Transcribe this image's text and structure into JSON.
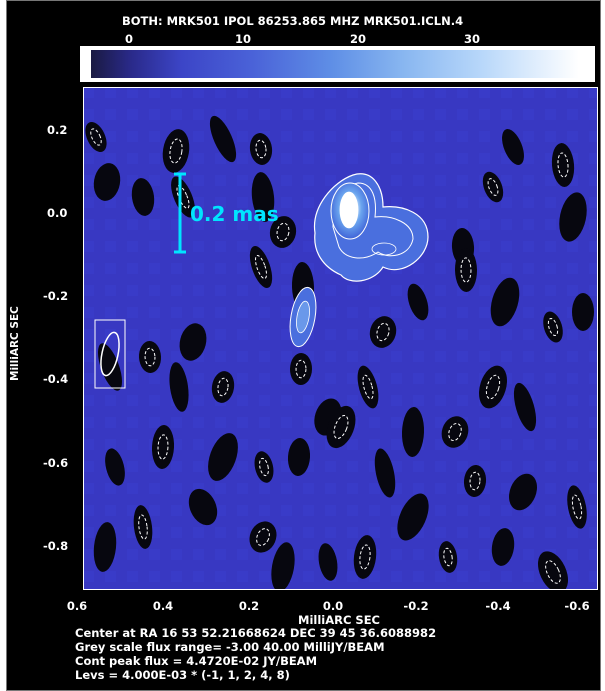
{
  "title": "BOTH: MRK501  IPOL  86253.865 MHZ  MRK501.ICLN.4",
  "colorbar": {
    "ticks": [
      "0",
      "10",
      "20",
      "30"
    ],
    "min": -3.0,
    "max": 40.0
  },
  "plot": {
    "xlabel": "MilliARC SEC",
    "ylabel": "MilliARC SEC",
    "x_ticks": [
      "0.6",
      "0.4",
      "0.2",
      "0.0",
      "-0.2",
      "-0.4",
      "-0.6"
    ],
    "y_ticks": [
      "0.2",
      "0.0",
      "-0.2",
      "-0.4",
      "-0.6",
      "-0.8"
    ],
    "scale_bar_label": "0.2 mas",
    "colors": {
      "background": "#3a3ac8",
      "dark": "#050510",
      "core": "#ffffff",
      "contour": "#ffffff",
      "scalebar": "#00e5ff"
    }
  },
  "info": {
    "center": "Center at RA 16 53 52.21668624  DEC 39 45 36.6088982",
    "grey_range": "Grey scale flux range= -3.00 40.00 MilliJY/BEAM",
    "peak": "Cont peak flux =  4.4720E-02 JY/BEAM",
    "levs": "Levs = 4.000E-03 * (-1, 1, 2, 4, 8)"
  }
}
